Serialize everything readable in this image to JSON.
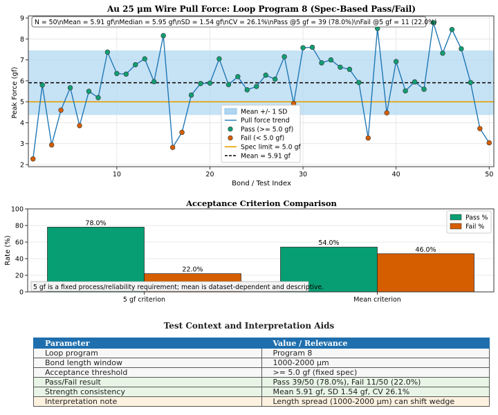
{
  "chart_data": [
    {
      "type": "line",
      "title": "Au 25 μm Wire Pull Force: Loop Program 8 (Spec-Based Pass/Fail)",
      "xlabel": "Bond / Test Index",
      "ylabel": "Peak Force (gf)",
      "xlim": [
        0.5,
        50.5
      ],
      "ylim": [
        1.9,
        9.1
      ],
      "xticks": [
        10,
        20,
        30,
        40,
        50
      ],
      "yticks": [
        2,
        3,
        4,
        5,
        6,
        7,
        8,
        9
      ],
      "grid": true,
      "stats_text": "N = 50\\nMean = 5.91 gf\\nMedian = 5.95 gf\\nSD = 1.54 gf\\nCV = 26.1%\\nPass @5 gf = 39 (78.0%)\\nFail @5 gf = 11 (22.0%)",
      "spec_limit": 5.0,
      "mean": 5.91,
      "sd": 1.54,
      "x": [
        1,
        2,
        3,
        4,
        5,
        6,
        7,
        8,
        9,
        10,
        11,
        12,
        13,
        14,
        15,
        16,
        17,
        18,
        19,
        20,
        21,
        22,
        23,
        24,
        25,
        26,
        27,
        28,
        29,
        30,
        31,
        32,
        33,
        34,
        35,
        36,
        37,
        38,
        39,
        40,
        41,
        42,
        43,
        44,
        45,
        46,
        47,
        48,
        49,
        50
      ],
      "y": [
        2.27,
        5.8,
        2.94,
        4.6,
        5.67,
        3.86,
        5.5,
        5.2,
        7.37,
        6.35,
        6.32,
        6.77,
        7.05,
        5.96,
        8.16,
        2.82,
        3.54,
        5.32,
        5.87,
        5.89,
        7.05,
        5.82,
        6.2,
        5.57,
        5.73,
        6.27,
        6.08,
        7.15,
        4.92,
        7.58,
        7.6,
        6.86,
        7.0,
        6.65,
        6.55,
        5.92,
        3.27,
        8.5,
        4.47,
        6.92,
        5.52,
        5.95,
        5.6,
        8.78,
        7.32,
        8.45,
        7.53,
        5.92,
        3.72,
        3.04
      ],
      "colors": {
        "pass": "#119e73",
        "fail": "#d55e00",
        "line": "#1f77b4",
        "band": "#aed6f1",
        "spec": "#e6a000",
        "mean": "#000000"
      },
      "legend": {
        "placement": "lower-center",
        "entries": [
          "Mean +/- 1 SD",
          "Pull force trend",
          "Pass (>= 5.0 gf)",
          "Fail (< 5.0 gf)",
          "Spec limit = 5.0 gf",
          "Mean = 5.91 gf"
        ]
      }
    },
    {
      "type": "bar",
      "title": "Acceptance Criterion Comparison",
      "ylabel": "Rate (%)",
      "ylim": [
        0,
        100
      ],
      "yticks": [
        0,
        20,
        40,
        60,
        80,
        100
      ],
      "categories": [
        "5 gf criterion",
        "Mean criterion"
      ],
      "series": [
        {
          "name": "Pass %",
          "values": [
            78.0,
            54.0
          ],
          "labels": [
            "78.0%",
            "54.0%"
          ],
          "color": "#079e73"
        },
        {
          "name": "Fail %",
          "values": [
            22.0,
            46.0
          ],
          "labels": [
            "22.0%",
            "46.0%"
          ],
          "color": "#d55e00"
        }
      ],
      "annotation": "5 gf is a fixed process/reliability requirement; mean is dataset-dependent and descriptive.",
      "legend": {
        "placement": "top-right"
      },
      "grid": true
    }
  ],
  "table": {
    "title": "Test Context and Interpretation Aids",
    "headers": [
      "Parameter",
      "Value / Relevance"
    ],
    "rows": [
      {
        "style": "plain",
        "cells": [
          "Loop program",
          "Program 8"
        ]
      },
      {
        "style": "plain",
        "cells": [
          "Bond length window",
          "1000-2000 μm"
        ]
      },
      {
        "style": "plain",
        "cells": [
          "Acceptance threshold",
          ">= 5.0 gf (fixed spec)"
        ]
      },
      {
        "style": "green",
        "cells": [
          "Pass/Fail result",
          "Pass 39/50 (78.0%), Fail 11/50 (22.0%)"
        ]
      },
      {
        "style": "green",
        "cells": [
          "Strength consistency",
          "Mean 5.91 gf, SD 1.54 gf, CV 26.1%"
        ]
      },
      {
        "style": "orange",
        "cells": [
          "Interpretation note",
          "Length spread (1000-2000 μm) can shift wedge"
        ]
      }
    ]
  }
}
